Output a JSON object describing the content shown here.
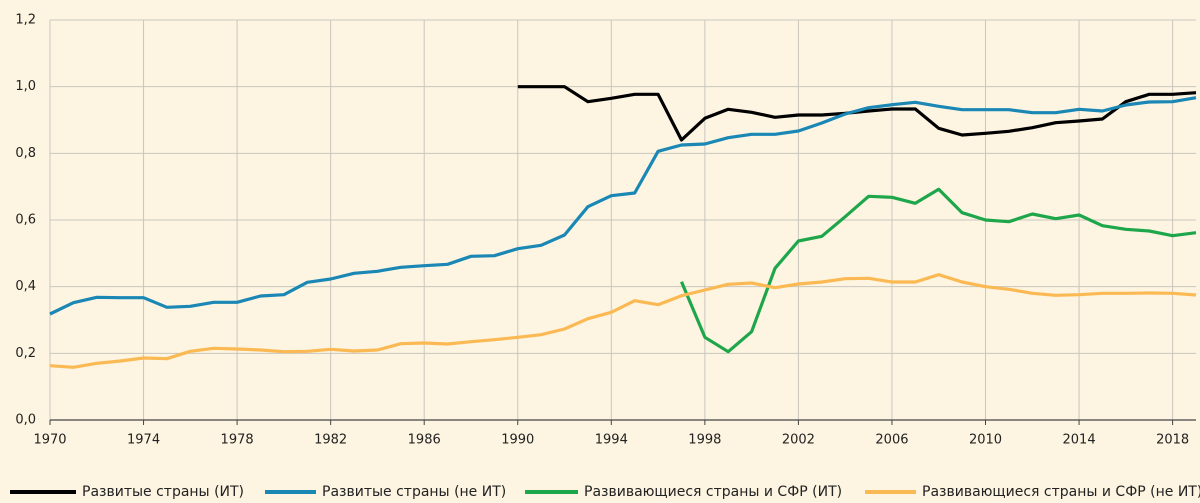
{
  "chart_data": {
    "type": "line",
    "x": [
      1970,
      1971,
      1972,
      1973,
      1974,
      1975,
      1976,
      1977,
      1978,
      1979,
      1980,
      1981,
      1982,
      1983,
      1984,
      1985,
      1986,
      1987,
      1988,
      1989,
      1990,
      1991,
      1992,
      1993,
      1994,
      1995,
      1996,
      1997,
      1998,
      1999,
      2000,
      2001,
      2002,
      2003,
      2004,
      2005,
      2006,
      2007,
      2008,
      2009,
      2010,
      2011,
      2012,
      2013,
      2014,
      2015,
      2016,
      2017,
      2018,
      2019
    ],
    "series": [
      {
        "name": "Развитые страны (ИТ)",
        "color": "#000000",
        "values": [
          null,
          null,
          null,
          null,
          null,
          null,
          null,
          null,
          null,
          null,
          null,
          null,
          null,
          null,
          null,
          null,
          null,
          null,
          null,
          null,
          1.0,
          1.0,
          1.0,
          0.955,
          0.965,
          0.977,
          0.977,
          0.84,
          0.905,
          0.932,
          0.923,
          0.908,
          0.915,
          0.915,
          0.92,
          0.927,
          0.933,
          0.933,
          0.875,
          0.855,
          0.86,
          0.866,
          0.877,
          0.892,
          0.897,
          0.903,
          0.955,
          0.977,
          0.977,
          0.982
        ]
      },
      {
        "name": "Развитые страны (не ИТ)",
        "color": "#1a87b5",
        "values": [
          0.318,
          0.352,
          0.368,
          0.367,
          0.367,
          0.338,
          0.341,
          0.353,
          0.353,
          0.372,
          0.376,
          0.413,
          0.423,
          0.44,
          0.446,
          0.458,
          0.463,
          0.467,
          0.491,
          0.493,
          0.514,
          0.524,
          0.555,
          0.64,
          0.673,
          0.681,
          0.806,
          0.825,
          0.828,
          0.847,
          0.857,
          0.857,
          0.867,
          0.891,
          0.918,
          0.937,
          0.946,
          0.953,
          0.941,
          0.931,
          0.931,
          0.931,
          0.922,
          0.922,
          0.932,
          0.927,
          0.945,
          0.954,
          0.955,
          0.967
        ]
      },
      {
        "name": "Развивающиеся страны и СФР (ИТ)",
        "color": "#1ea64b",
        "values": [
          null,
          null,
          null,
          null,
          null,
          null,
          null,
          null,
          null,
          null,
          null,
          null,
          null,
          null,
          null,
          null,
          null,
          null,
          null,
          null,
          null,
          null,
          null,
          null,
          null,
          null,
          null,
          0.415,
          0.248,
          0.205,
          0.265,
          0.455,
          0.537,
          0.551,
          0.61,
          0.671,
          0.668,
          0.65,
          0.692,
          0.622,
          0.6,
          0.595,
          0.618,
          0.604,
          0.615,
          0.583,
          0.572,
          0.567,
          0.553,
          0.562
        ]
      },
      {
        "name": "Развивающиеся страны и СФР (не ИТ)",
        "color": "#fbb954",
        "values": [
          0.163,
          0.158,
          0.17,
          0.177,
          0.186,
          0.184,
          0.206,
          0.215,
          0.213,
          0.21,
          0.205,
          0.206,
          0.212,
          0.207,
          0.21,
          0.229,
          0.231,
          0.228,
          0.235,
          0.241,
          0.248,
          0.256,
          0.273,
          0.304,
          0.323,
          0.358,
          0.346,
          0.373,
          0.39,
          0.407,
          0.411,
          0.397,
          0.408,
          0.414,
          0.424,
          0.425,
          0.414,
          0.414,
          0.436,
          0.414,
          0.4,
          0.392,
          0.38,
          0.374,
          0.376,
          0.38,
          0.38,
          0.381,
          0.38,
          0.375
        ]
      }
    ],
    "xlim": [
      1970,
      2019
    ],
    "xticks": [
      1970,
      1974,
      1978,
      1982,
      1986,
      1990,
      1994,
      1998,
      2002,
      2006,
      2010,
      2014,
      2018
    ],
    "ylim": [
      0,
      1.2
    ],
    "yticks": [
      {
        "value": 0,
        "label": "0,0"
      },
      {
        "value": 0.2,
        "label": "0,2"
      },
      {
        "value": 0.4,
        "label": "0,4"
      },
      {
        "value": 0.6,
        "label": "0,6"
      },
      {
        "value": 0.8,
        "label": "0,8"
      },
      {
        "value": 1.0,
        "label": "1,0"
      },
      {
        "value": 1.2,
        "label": "1,2"
      }
    ],
    "grid": true,
    "legend": "bottom"
  }
}
